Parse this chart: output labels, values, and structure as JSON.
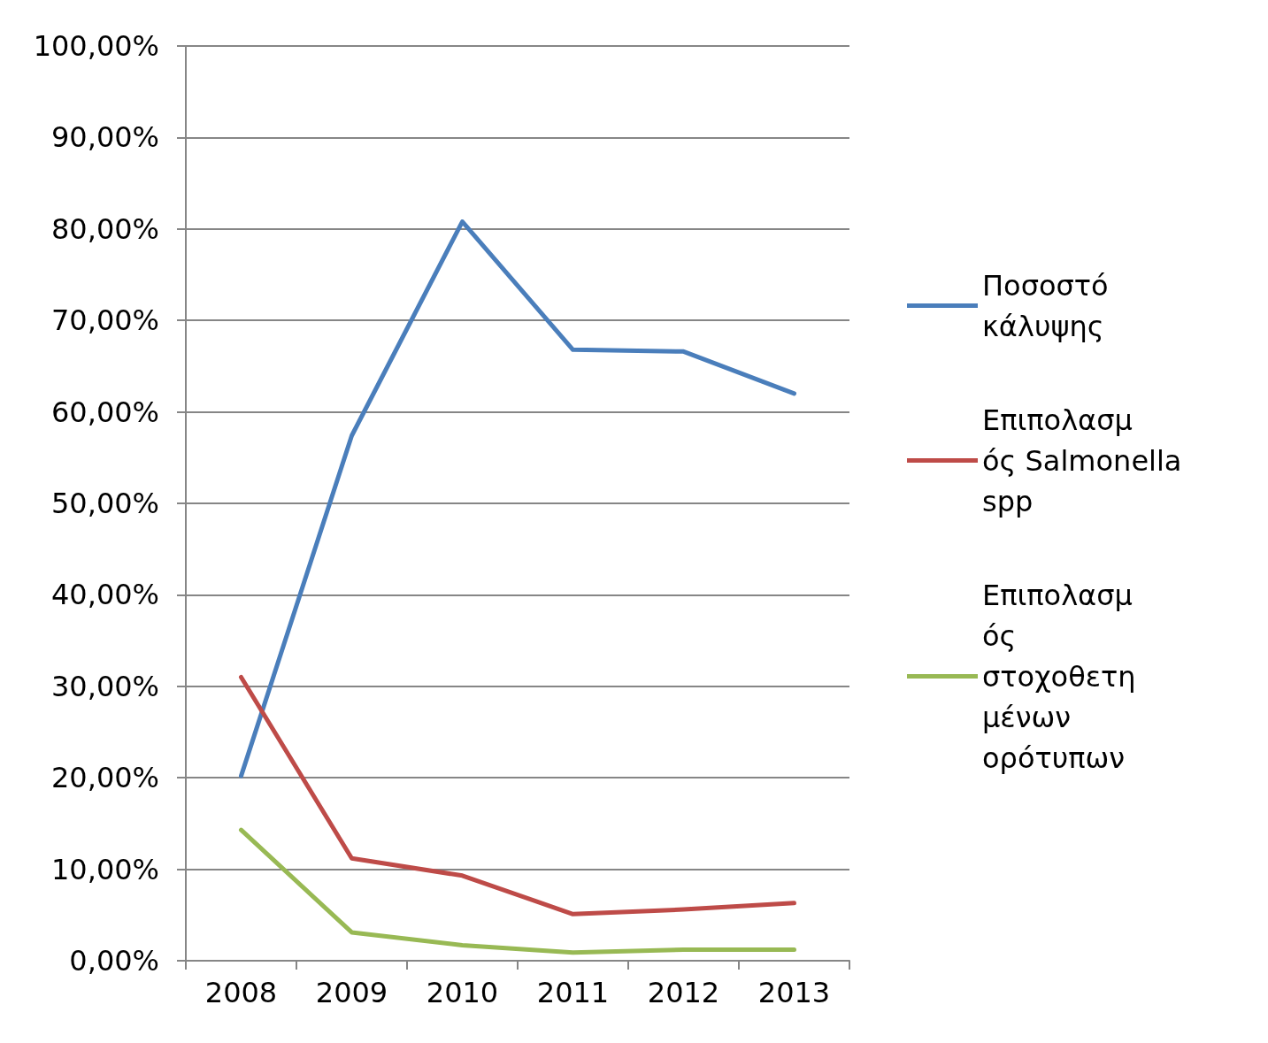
{
  "chart_data": {
    "type": "line",
    "categories": [
      "2008",
      "2009",
      "2010",
      "2011",
      "2012",
      "2013"
    ],
    "series": [
      {
        "name": "Ποσοστό κάλυψης",
        "color": "#4a7ebb",
        "values": [
          20.2,
          57.4,
          80.8,
          66.8,
          66.6,
          62.0
        ]
      },
      {
        "name": "Επιπολασμός Salmonella spp",
        "color": "#be4b48",
        "values": [
          31.0,
          11.2,
          9.3,
          5.1,
          5.6,
          6.3
        ]
      },
      {
        "name": "Επιπολασμός στοχοθετημένων ορότυπων",
        "color": "#98b954",
        "values": [
          14.3,
          3.1,
          1.7,
          0.9,
          1.2,
          1.2
        ]
      }
    ],
    "ylim": [
      0,
      100
    ],
    "yticks": [
      {
        "value": 0,
        "label": "0,00%"
      },
      {
        "value": 10,
        "label": "10,00%"
      },
      {
        "value": 20,
        "label": "20,00%"
      },
      {
        "value": 30,
        "label": "30,00%"
      },
      {
        "value": 40,
        "label": "40,00%"
      },
      {
        "value": 50,
        "label": "50,00%"
      },
      {
        "value": 60,
        "label": "60,00%"
      },
      {
        "value": 70,
        "label": "70,00%"
      },
      {
        "value": 80,
        "label": "80,00%"
      },
      {
        "value": 90,
        "label": "90,00%"
      },
      {
        "value": 100,
        "label": "100,00%"
      }
    ],
    "grid": "y",
    "legend": "right",
    "marker": "none",
    "line_style": "solid"
  }
}
